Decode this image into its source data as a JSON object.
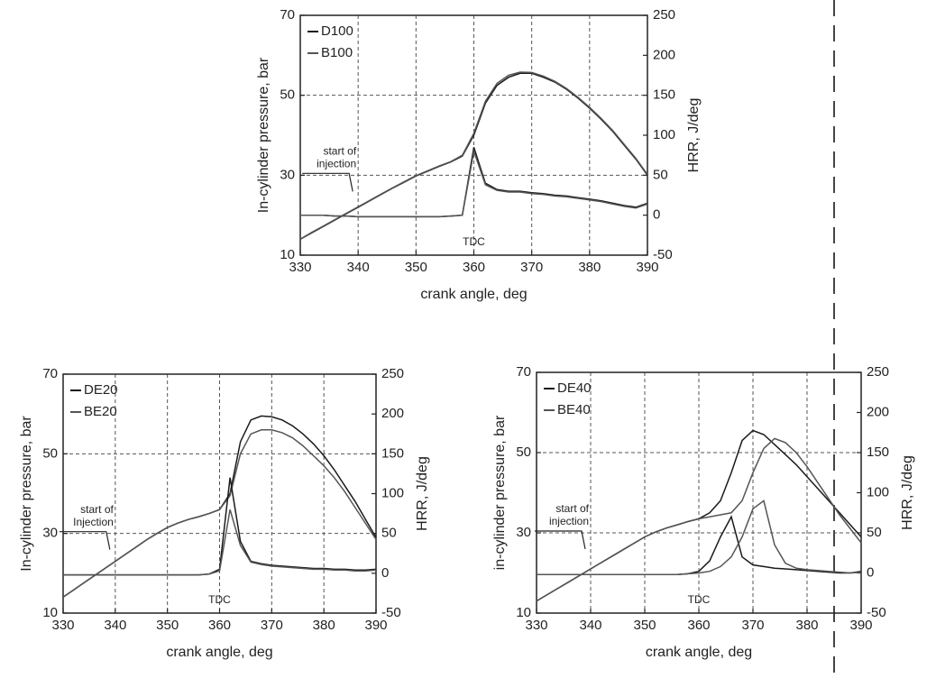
{
  "chart_data": [
    {
      "type": "line",
      "x_label": "crank angle, deg",
      "y_label": "In-cylinder pressure, bar",
      "y2_label": "HRR, J/deg",
      "annotation_start": [
        "start of",
        "injection"
      ],
      "annotation_tdc": "TDC",
      "xlim": [
        330,
        390
      ],
      "xticks": [
        330,
        340,
        350,
        360,
        370,
        380,
        390
      ],
      "ylim": [
        10,
        70
      ],
      "yticks": [
        10,
        30,
        50,
        70
      ],
      "y2lim": [
        -50,
        250
      ],
      "y2ticks": [
        -50,
        0,
        50,
        100,
        150,
        200,
        250
      ],
      "grid": true,
      "legend": "upper-left",
      "x": [
        330,
        332,
        334,
        336,
        338,
        340,
        342,
        344,
        346,
        348,
        350,
        352,
        354,
        356,
        358,
        360,
        362,
        364,
        366,
        368,
        370,
        372,
        374,
        376,
        378,
        380,
        382,
        384,
        386,
        388,
        390
      ],
      "series": [
        {
          "name": "D100",
          "color": "#1a1a1a",
          "values": [
            14,
            15.6,
            17.2,
            18.8,
            20.4,
            22,
            23.6,
            25.2,
            26.8,
            28.3,
            29.8,
            31,
            32.2,
            33.3,
            34.8,
            40,
            48,
            52.5,
            54.5,
            55.5,
            55.5,
            54.5,
            53.3,
            51.5,
            49.3,
            46.8,
            44,
            41,
            37.5,
            34,
            30
          ]
        },
        {
          "name": "B100",
          "color": "#555555",
          "values": [
            14,
            15.7,
            17.3,
            18.9,
            20.5,
            22.1,
            23.7,
            25.3,
            26.9,
            28.4,
            29.9,
            31.1,
            32.3,
            33.4,
            35,
            40.5,
            48.5,
            53,
            55,
            55.8,
            55.7,
            54.8,
            53.5,
            51.7,
            49.5,
            47,
            44.2,
            41.2,
            37.7,
            34.2,
            30.2
          ]
        },
        {
          "color": "#1a1a1a",
          "axis": "y2",
          "values": [
            0,
            0,
            0,
            -1,
            -1,
            -2,
            -2,
            -2,
            -2,
            -2,
            -2,
            -2,
            -2,
            -1,
            0,
            85,
            40,
            32,
            30,
            30,
            28,
            27,
            25,
            24,
            22,
            20,
            18,
            15,
            12,
            10,
            15
          ]
        },
        {
          "color": "#555555",
          "axis": "y2",
          "values": [
            0,
            0,
            0,
            -1,
            -1,
            -2,
            -2,
            -2,
            -2,
            -2,
            -2,
            -2,
            -2,
            -1,
            0,
            80,
            38,
            31,
            29,
            29,
            27,
            26,
            24,
            23,
            21,
            19,
            17,
            14,
            11,
            9,
            14
          ]
        }
      ]
    },
    {
      "type": "line",
      "x_label": "crank angle, deg",
      "y_label": "In-cylinder pressure, bar",
      "y2_label": "HRR, J/deg",
      "annotation_start": [
        "start of",
        "Injection"
      ],
      "annotation_tdc": "TDC",
      "xlim": [
        330,
        390
      ],
      "xticks": [
        330,
        340,
        350,
        360,
        370,
        380,
        390
      ],
      "ylim": [
        10,
        70
      ],
      "yticks": [
        10,
        30,
        50,
        70
      ],
      "y2lim": [
        -50,
        250
      ],
      "y2ticks": [
        -50,
        0,
        50,
        100,
        150,
        200,
        250
      ],
      "grid": true,
      "legend": "upper-left",
      "x": [
        330,
        332,
        334,
        336,
        338,
        340,
        342,
        344,
        346,
        348,
        350,
        352,
        354,
        356,
        358,
        360,
        362,
        364,
        366,
        368,
        370,
        372,
        374,
        376,
        378,
        380,
        382,
        384,
        386,
        388,
        390
      ],
      "series": [
        {
          "name": "DE20",
          "color": "#1a1a1a",
          "values": [
            14,
            15.8,
            17.6,
            19.4,
            21.2,
            23,
            24.8,
            26.6,
            28.4,
            30,
            31.5,
            32.6,
            33.5,
            34.2,
            35,
            36,
            40,
            53,
            58.5,
            59.5,
            59.3,
            58.5,
            57,
            55,
            52.5,
            49.5,
            46,
            42,
            38,
            33.5,
            29
          ]
        },
        {
          "name": "BE20",
          "color": "#555555",
          "values": [
            14,
            15.8,
            17.6,
            19.4,
            21.2,
            23,
            24.8,
            26.6,
            28.4,
            30,
            31.5,
            32.6,
            33.5,
            34.2,
            35,
            36,
            39.5,
            50,
            55,
            56,
            56,
            55.3,
            54,
            52,
            49.5,
            47,
            44,
            40.5,
            36.5,
            32.5,
            28.5
          ]
        },
        {
          "color": "#1a1a1a",
          "axis": "y2",
          "values": [
            -2,
            -2,
            -2,
            -2,
            -2,
            -2,
            -2,
            -2,
            -2,
            -2,
            -2,
            -2,
            -2,
            -2,
            -1,
            5,
            120,
            40,
            15,
            12,
            10,
            9,
            8,
            7,
            6,
            6,
            5,
            5,
            4,
            4,
            5
          ]
        },
        {
          "color": "#555555",
          "axis": "y2",
          "values": [
            -2,
            -2,
            -2,
            -2,
            -2,
            -2,
            -2,
            -2,
            -2,
            -2,
            -2,
            -2,
            -2,
            -2,
            -1,
            3,
            80,
            35,
            14,
            11,
            9,
            8,
            7,
            6,
            5,
            5,
            4,
            4,
            3,
            3,
            4
          ]
        }
      ]
    },
    {
      "type": "line",
      "x_label": "crank angle, deg",
      "y_label": "in-cylinder pressure, bar",
      "y2_label": "HRR, J/deg",
      "annotation_start": [
        "start of",
        "injection"
      ],
      "annotation_tdc": "TDC",
      "xlim": [
        330,
        390
      ],
      "xticks": [
        330,
        340,
        350,
        360,
        370,
        380,
        390
      ],
      "ylim": [
        10,
        70
      ],
      "yticks": [
        10,
        30,
        50,
        70
      ],
      "y2lim": [
        -50,
        250
      ],
      "y2ticks": [
        -50,
        0,
        50,
        100,
        150,
        200,
        250
      ],
      "grid": true,
      "legend": "upper-left",
      "x": [
        330,
        332,
        334,
        336,
        338,
        340,
        342,
        344,
        346,
        348,
        350,
        352,
        354,
        356,
        358,
        360,
        362,
        364,
        366,
        368,
        370,
        372,
        374,
        376,
        378,
        380,
        382,
        384,
        386,
        388,
        390
      ],
      "series": [
        {
          "name": "DE40",
          "color": "#1a1a1a",
          "values": [
            13,
            14.6,
            16.2,
            17.8,
            19.4,
            21,
            22.6,
            24.2,
            25.8,
            27.4,
            29,
            30.2,
            31.2,
            32,
            32.8,
            33.5,
            35,
            38,
            45,
            53,
            55.5,
            54.5,
            52,
            49.5,
            47,
            44,
            41,
            38,
            35,
            32,
            29
          ]
        },
        {
          "name": "BE40",
          "color": "#555555",
          "values": [
            13,
            14.6,
            16.2,
            17.8,
            19.4,
            21,
            22.6,
            24.2,
            25.8,
            27.4,
            29,
            30.2,
            31.2,
            32,
            32.8,
            33.5,
            34,
            34.5,
            35,
            38,
            45,
            51,
            53.5,
            52.5,
            50,
            46.5,
            42.5,
            38.5,
            34.5,
            31,
            27.5
          ]
        },
        {
          "color": "#1a1a1a",
          "axis": "y2",
          "values": [
            -2,
            -2,
            -2,
            -2,
            -2,
            -2,
            -2,
            -2,
            -2,
            -2,
            -2,
            -2,
            -2,
            -2,
            -1,
            2,
            15,
            45,
            70,
            20,
            10,
            8,
            6,
            5,
            4,
            3,
            2,
            1,
            0,
            0,
            2
          ]
        },
        {
          "color": "#555555",
          "axis": "y2",
          "values": [
            -2,
            -2,
            -2,
            -2,
            -2,
            -2,
            -2,
            -2,
            -2,
            -2,
            -2,
            -2,
            -2,
            -2,
            -1,
            0,
            2,
            8,
            20,
            45,
            80,
            90,
            35,
            12,
            6,
            4,
            3,
            2,
            1,
            0,
            1
          ]
        }
      ]
    }
  ]
}
